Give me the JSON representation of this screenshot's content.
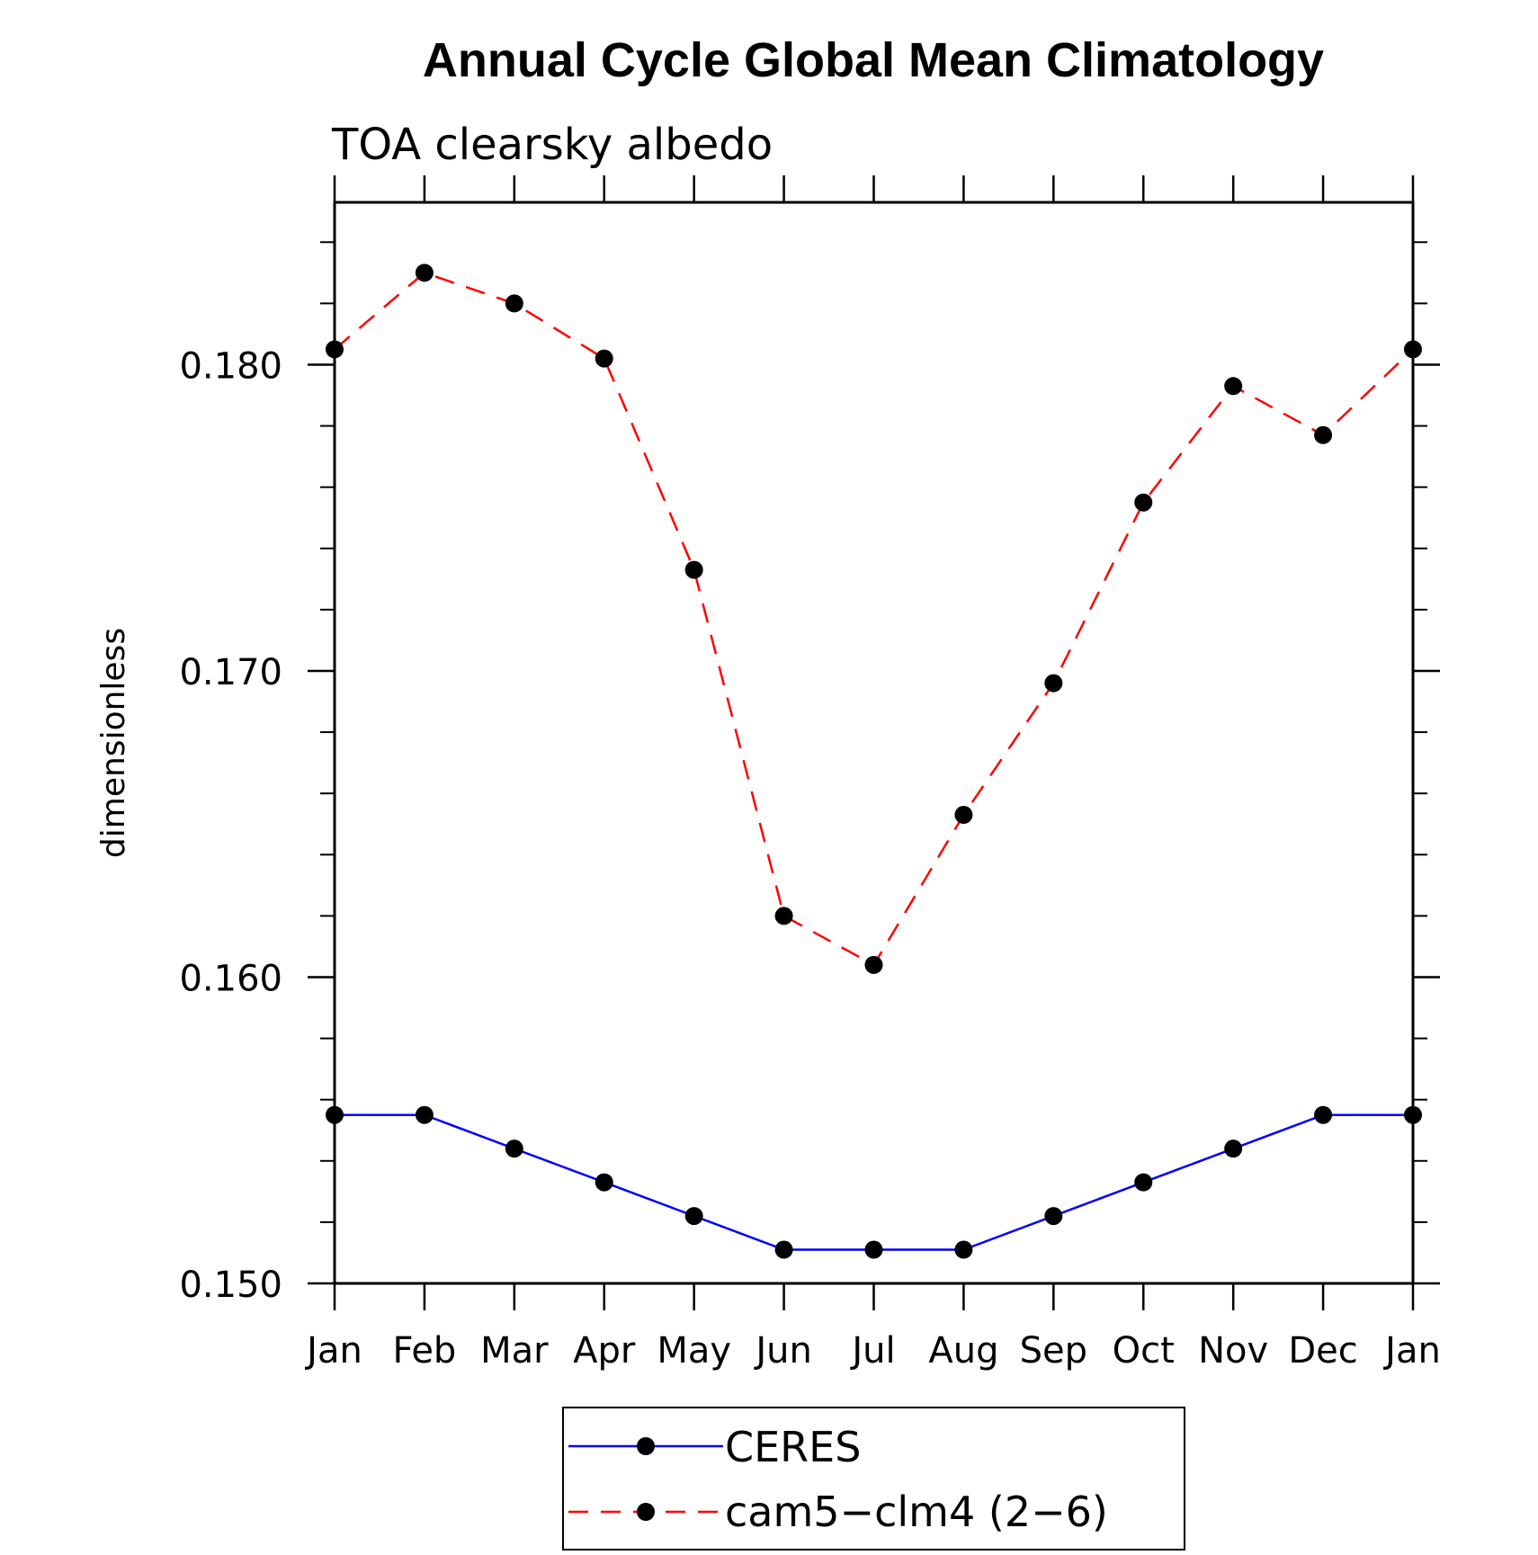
{
  "chart_data": {
    "type": "line",
    "title": "Annual Cycle Global Mean Climatology",
    "subtitle": "TOA clearsky albedo",
    "xlabel": "",
    "ylabel": "dimensionless",
    "categories": [
      "Jan",
      "Feb",
      "Mar",
      "Apr",
      "May",
      "Jun",
      "Jul",
      "Aug",
      "Sep",
      "Oct",
      "Nov",
      "Dec",
      "Jan"
    ],
    "ylim": [
      0.15,
      0.1853
    ],
    "yticks": [
      0.15,
      0.16,
      0.17,
      0.18
    ],
    "ytick_labels": [
      "0.150",
      "0.160",
      "0.170",
      "0.180"
    ],
    "yminor_step": 0.002,
    "grid": false,
    "legend_position": "bottom",
    "series": [
      {
        "name": "CERES",
        "color": "#0000ff",
        "dash": "solid",
        "values": [
          0.1555,
          0.1555,
          0.1544,
          0.1533,
          0.1522,
          0.1511,
          0.1511,
          0.1511,
          0.1522,
          0.1533,
          0.1544,
          0.1555,
          0.1555
        ]
      },
      {
        "name": "cam5−clm4 (2−6)",
        "color": "#ff0000",
        "dash": "dashed",
        "values": [
          0.1805,
          0.183,
          0.182,
          0.1802,
          0.1733,
          0.162,
          0.1604,
          0.1653,
          0.1696,
          0.1755,
          0.1793,
          0.1777,
          0.1805
        ]
      }
    ]
  }
}
